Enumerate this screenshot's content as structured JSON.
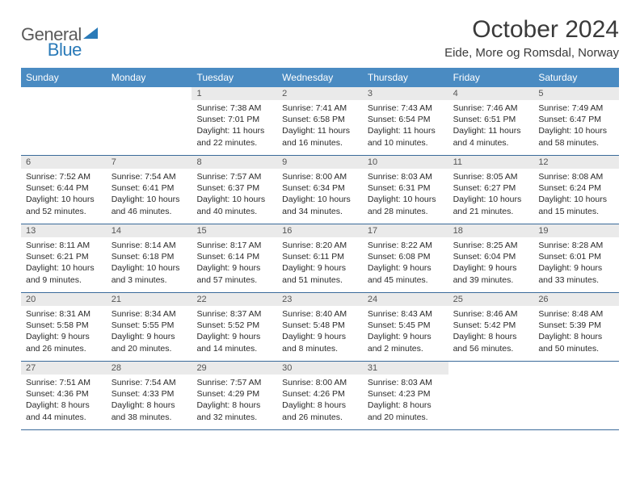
{
  "logo": {
    "text1": "General",
    "text2": "Blue"
  },
  "header": {
    "month_title": "October 2024",
    "location": "Eide, More og Romsdal, Norway"
  },
  "colors": {
    "header_bg": "#4a8bc2",
    "header_text": "#ffffff",
    "daynum_bg": "#eaeaea",
    "daynum_text": "#555555",
    "rule": "#3a6a9a",
    "body_text": "#2a2a2a",
    "logo_gray": "#5a5a5a",
    "logo_blue": "#2a7ab8"
  },
  "day_names": [
    "Sunday",
    "Monday",
    "Tuesday",
    "Wednesday",
    "Thursday",
    "Friday",
    "Saturday"
  ],
  "weeks": [
    [
      {
        "n": "",
        "sunrise": "",
        "sunset": "",
        "daylight": ""
      },
      {
        "n": "",
        "sunrise": "",
        "sunset": "",
        "daylight": ""
      },
      {
        "n": "1",
        "sunrise": "Sunrise: 7:38 AM",
        "sunset": "Sunset: 7:01 PM",
        "daylight": "Daylight: 11 hours and 22 minutes."
      },
      {
        "n": "2",
        "sunrise": "Sunrise: 7:41 AM",
        "sunset": "Sunset: 6:58 PM",
        "daylight": "Daylight: 11 hours and 16 minutes."
      },
      {
        "n": "3",
        "sunrise": "Sunrise: 7:43 AM",
        "sunset": "Sunset: 6:54 PM",
        "daylight": "Daylight: 11 hours and 10 minutes."
      },
      {
        "n": "4",
        "sunrise": "Sunrise: 7:46 AM",
        "sunset": "Sunset: 6:51 PM",
        "daylight": "Daylight: 11 hours and 4 minutes."
      },
      {
        "n": "5",
        "sunrise": "Sunrise: 7:49 AM",
        "sunset": "Sunset: 6:47 PM",
        "daylight": "Daylight: 10 hours and 58 minutes."
      }
    ],
    [
      {
        "n": "6",
        "sunrise": "Sunrise: 7:52 AM",
        "sunset": "Sunset: 6:44 PM",
        "daylight": "Daylight: 10 hours and 52 minutes."
      },
      {
        "n": "7",
        "sunrise": "Sunrise: 7:54 AM",
        "sunset": "Sunset: 6:41 PM",
        "daylight": "Daylight: 10 hours and 46 minutes."
      },
      {
        "n": "8",
        "sunrise": "Sunrise: 7:57 AM",
        "sunset": "Sunset: 6:37 PM",
        "daylight": "Daylight: 10 hours and 40 minutes."
      },
      {
        "n": "9",
        "sunrise": "Sunrise: 8:00 AM",
        "sunset": "Sunset: 6:34 PM",
        "daylight": "Daylight: 10 hours and 34 minutes."
      },
      {
        "n": "10",
        "sunrise": "Sunrise: 8:03 AM",
        "sunset": "Sunset: 6:31 PM",
        "daylight": "Daylight: 10 hours and 28 minutes."
      },
      {
        "n": "11",
        "sunrise": "Sunrise: 8:05 AM",
        "sunset": "Sunset: 6:27 PM",
        "daylight": "Daylight: 10 hours and 21 minutes."
      },
      {
        "n": "12",
        "sunrise": "Sunrise: 8:08 AM",
        "sunset": "Sunset: 6:24 PM",
        "daylight": "Daylight: 10 hours and 15 minutes."
      }
    ],
    [
      {
        "n": "13",
        "sunrise": "Sunrise: 8:11 AM",
        "sunset": "Sunset: 6:21 PM",
        "daylight": "Daylight: 10 hours and 9 minutes."
      },
      {
        "n": "14",
        "sunrise": "Sunrise: 8:14 AM",
        "sunset": "Sunset: 6:18 PM",
        "daylight": "Daylight: 10 hours and 3 minutes."
      },
      {
        "n": "15",
        "sunrise": "Sunrise: 8:17 AM",
        "sunset": "Sunset: 6:14 PM",
        "daylight": "Daylight: 9 hours and 57 minutes."
      },
      {
        "n": "16",
        "sunrise": "Sunrise: 8:20 AM",
        "sunset": "Sunset: 6:11 PM",
        "daylight": "Daylight: 9 hours and 51 minutes."
      },
      {
        "n": "17",
        "sunrise": "Sunrise: 8:22 AM",
        "sunset": "Sunset: 6:08 PM",
        "daylight": "Daylight: 9 hours and 45 minutes."
      },
      {
        "n": "18",
        "sunrise": "Sunrise: 8:25 AM",
        "sunset": "Sunset: 6:04 PM",
        "daylight": "Daylight: 9 hours and 39 minutes."
      },
      {
        "n": "19",
        "sunrise": "Sunrise: 8:28 AM",
        "sunset": "Sunset: 6:01 PM",
        "daylight": "Daylight: 9 hours and 33 minutes."
      }
    ],
    [
      {
        "n": "20",
        "sunrise": "Sunrise: 8:31 AM",
        "sunset": "Sunset: 5:58 PM",
        "daylight": "Daylight: 9 hours and 26 minutes."
      },
      {
        "n": "21",
        "sunrise": "Sunrise: 8:34 AM",
        "sunset": "Sunset: 5:55 PM",
        "daylight": "Daylight: 9 hours and 20 minutes."
      },
      {
        "n": "22",
        "sunrise": "Sunrise: 8:37 AM",
        "sunset": "Sunset: 5:52 PM",
        "daylight": "Daylight: 9 hours and 14 minutes."
      },
      {
        "n": "23",
        "sunrise": "Sunrise: 8:40 AM",
        "sunset": "Sunset: 5:48 PM",
        "daylight": "Daylight: 9 hours and 8 minutes."
      },
      {
        "n": "24",
        "sunrise": "Sunrise: 8:43 AM",
        "sunset": "Sunset: 5:45 PM",
        "daylight": "Daylight: 9 hours and 2 minutes."
      },
      {
        "n": "25",
        "sunrise": "Sunrise: 8:46 AM",
        "sunset": "Sunset: 5:42 PM",
        "daylight": "Daylight: 8 hours and 56 minutes."
      },
      {
        "n": "26",
        "sunrise": "Sunrise: 8:48 AM",
        "sunset": "Sunset: 5:39 PM",
        "daylight": "Daylight: 8 hours and 50 minutes."
      }
    ],
    [
      {
        "n": "27",
        "sunrise": "Sunrise: 7:51 AM",
        "sunset": "Sunset: 4:36 PM",
        "daylight": "Daylight: 8 hours and 44 minutes."
      },
      {
        "n": "28",
        "sunrise": "Sunrise: 7:54 AM",
        "sunset": "Sunset: 4:33 PM",
        "daylight": "Daylight: 8 hours and 38 minutes."
      },
      {
        "n": "29",
        "sunrise": "Sunrise: 7:57 AM",
        "sunset": "Sunset: 4:29 PM",
        "daylight": "Daylight: 8 hours and 32 minutes."
      },
      {
        "n": "30",
        "sunrise": "Sunrise: 8:00 AM",
        "sunset": "Sunset: 4:26 PM",
        "daylight": "Daylight: 8 hours and 26 minutes."
      },
      {
        "n": "31",
        "sunrise": "Sunrise: 8:03 AM",
        "sunset": "Sunset: 4:23 PM",
        "daylight": "Daylight: 8 hours and 20 minutes."
      },
      {
        "n": "",
        "sunrise": "",
        "sunset": "",
        "daylight": ""
      },
      {
        "n": "",
        "sunrise": "",
        "sunset": "",
        "daylight": ""
      }
    ]
  ]
}
